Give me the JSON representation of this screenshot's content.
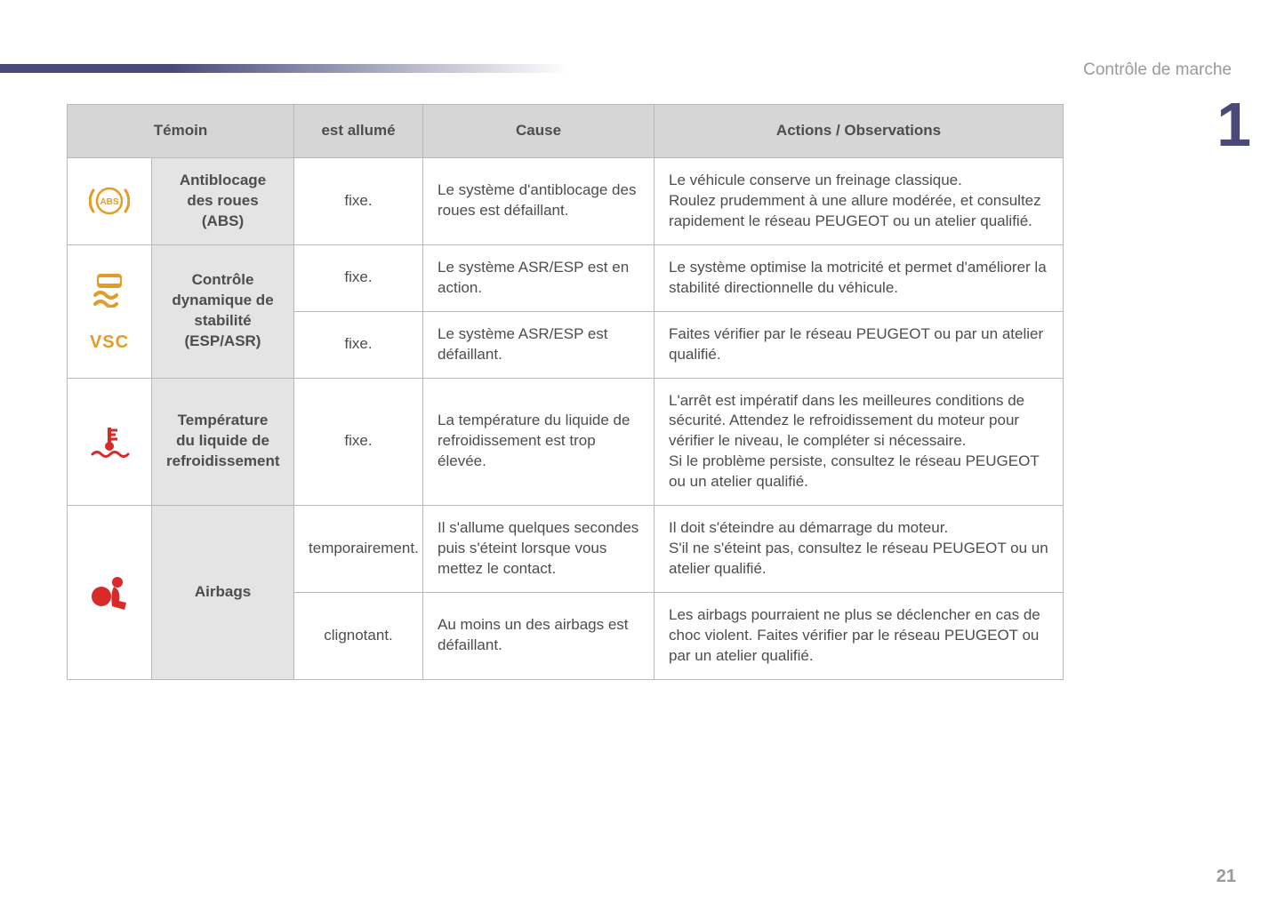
{
  "section_label": "Contrôle de marche",
  "chapter_number": "1",
  "page_number": "21",
  "colors": {
    "amber": "#e59b28",
    "red": "#d92a2a",
    "header_bg": "#d6d6d6",
    "name_bg": "#e4e4e4",
    "border": "#b8b8b8",
    "text": "#4d4d4d",
    "accent": "#4a4a7a"
  },
  "headers": {
    "temoin": "Témoin",
    "lit": "est allumé",
    "cause": "Cause",
    "actions": "Actions / Observations"
  },
  "rows": {
    "abs": {
      "name": "Antiblocage des roues (ABS)",
      "lit": "fixe.",
      "cause": "Le système d'antiblocage des roues est défaillant.",
      "actions": "Le véhicule conserve un freinage classique.\nRoulez prudemment à une allure modérée, et consultez rapidement le réseau PEUGEOT ou un atelier qualifié."
    },
    "esp": {
      "name": "Contrôle dynamique de stabilité (ESP/ASR)",
      "vsc_label": "VSC",
      "r1": {
        "lit": "fixe.",
        "cause": "Le système ASR/ESP est en action.",
        "actions": "Le système optimise la motricité et permet d'améliorer la stabilité directionnelle du véhicule."
      },
      "r2": {
        "lit": "fixe.",
        "cause": "Le système ASR/ESP est défaillant.",
        "actions": "Faites vérifier par le réseau PEUGEOT ou par un atelier qualifié."
      }
    },
    "temp": {
      "name": "Température du liquide de refroidissement",
      "lit": "fixe.",
      "cause": "La température du liquide de refroidissement est trop élevée.",
      "actions": "L'arrêt est impératif dans les meilleures conditions de sécurité. Attendez le refroidissement du moteur pour vérifier le niveau, le compléter si nécessaire.\nSi le problème persiste, consultez le réseau PEUGEOT ou un atelier qualifié."
    },
    "airbag": {
      "name": "Airbags",
      "r1": {
        "lit": "temporairement.",
        "cause": "Il s'allume quelques secondes puis s'éteint lorsque vous mettez le contact.",
        "actions": "Il doit s'éteindre au démarrage du moteur.\nS'il ne s'éteint pas, consultez le réseau PEUGEOT ou un atelier qualifié."
      },
      "r2": {
        "lit": "clignotant.",
        "cause": "Au moins un des airbags est défaillant.",
        "actions": "Les airbags pourraient ne plus se déclencher en cas de choc violent. Faites vérifier par le réseau PEUGEOT ou par un atelier qualifié."
      }
    }
  }
}
